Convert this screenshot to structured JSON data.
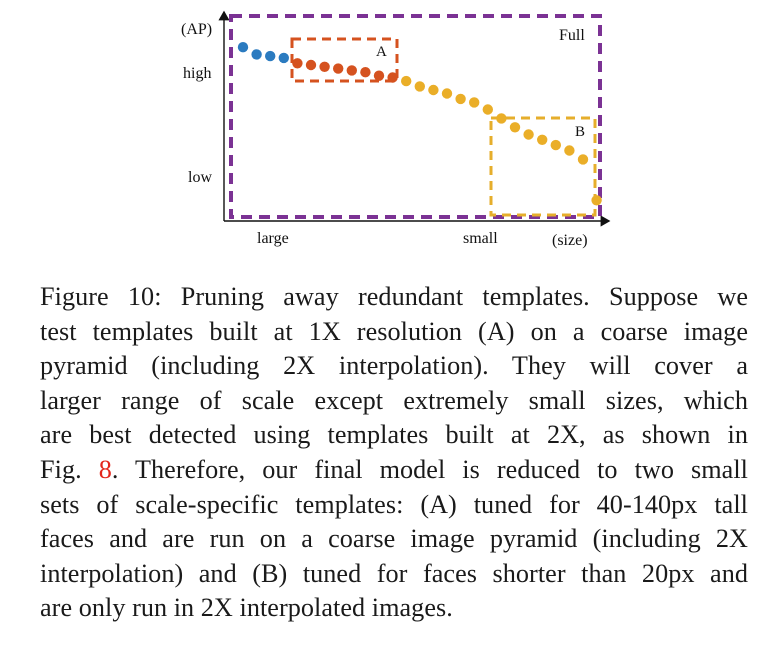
{
  "figure": {
    "y_axis_unit": "(AP)",
    "y_tick_high": "high",
    "y_tick_low": "low",
    "x_tick_large": "large",
    "x_tick_small": "small",
    "x_axis_unit": "(size)",
    "box_full_label": "Full",
    "box_a_label": "A",
    "box_b_label": "B",
    "colors": {
      "full_box": "#7b3294",
      "box_a": "#d5521f",
      "box_b": "#e6ae2b",
      "dots_blue": "#2b7bc0",
      "dots_orange": "#d5521f",
      "dots_yellow": "#eaae28"
    }
  },
  "chart_data": {
    "type": "scatter",
    "title": "",
    "xlabel": "(size)",
    "ylabel": "(AP)",
    "x_ticks": [
      "large",
      "small"
    ],
    "y_ticks": [
      "high",
      "low"
    ],
    "series": [
      {
        "name": "",
        "color": "#2b7bc0",
        "x": [
          1,
          2,
          3,
          4
        ],
        "y": [
          0.92,
          0.88,
          0.87,
          0.86
        ]
      },
      {
        "name": "",
        "color": "#d5521f",
        "x": [
          5,
          6,
          7,
          8,
          9,
          10,
          11,
          12
        ],
        "y": [
          0.83,
          0.82,
          0.81,
          0.8,
          0.79,
          0.78,
          0.76,
          0.75
        ]
      },
      {
        "name": "",
        "color": "#eaae28",
        "x": [
          13,
          14,
          15,
          16,
          17,
          18,
          19,
          20,
          21,
          22,
          23,
          24,
          25,
          26,
          27
        ],
        "y": [
          0.73,
          0.7,
          0.68,
          0.66,
          0.63,
          0.61,
          0.57,
          0.52,
          0.47,
          0.43,
          0.4,
          0.37,
          0.34,
          0.29,
          0.06
        ]
      }
    ],
    "regions": [
      {
        "label": "Full",
        "x_range": [
          1,
          27
        ]
      },
      {
        "label": "A",
        "x_range": [
          5,
          12
        ]
      },
      {
        "label": "B",
        "x_range": [
          21,
          27
        ]
      }
    ]
  },
  "caption": {
    "lines": [
      "Figure 10: Pruning away redundant templates. Suppose we",
      "test templates built at 1X resolution (A) on a coarse image",
      "pyramid (including 2X interpolation).  They will cover a",
      "larger range of scale except extremely small sizes, which",
      "are best detected using templates built at 2X, as shown in"
    ],
    "line6_before": "Fig. ",
    "line6_ref": "8",
    "line6_after": ". Therefore, our final model is reduced to two small",
    "lines_rest": [
      "sets of scale-specific templates: (A) tuned for 40-140px tall",
      "faces and are run on a coarse image pyramid (including 2X",
      "interpolation) and (B) tuned for faces shorter than 20px and"
    ],
    "last_line": "are only run in 2X interpolated images."
  }
}
